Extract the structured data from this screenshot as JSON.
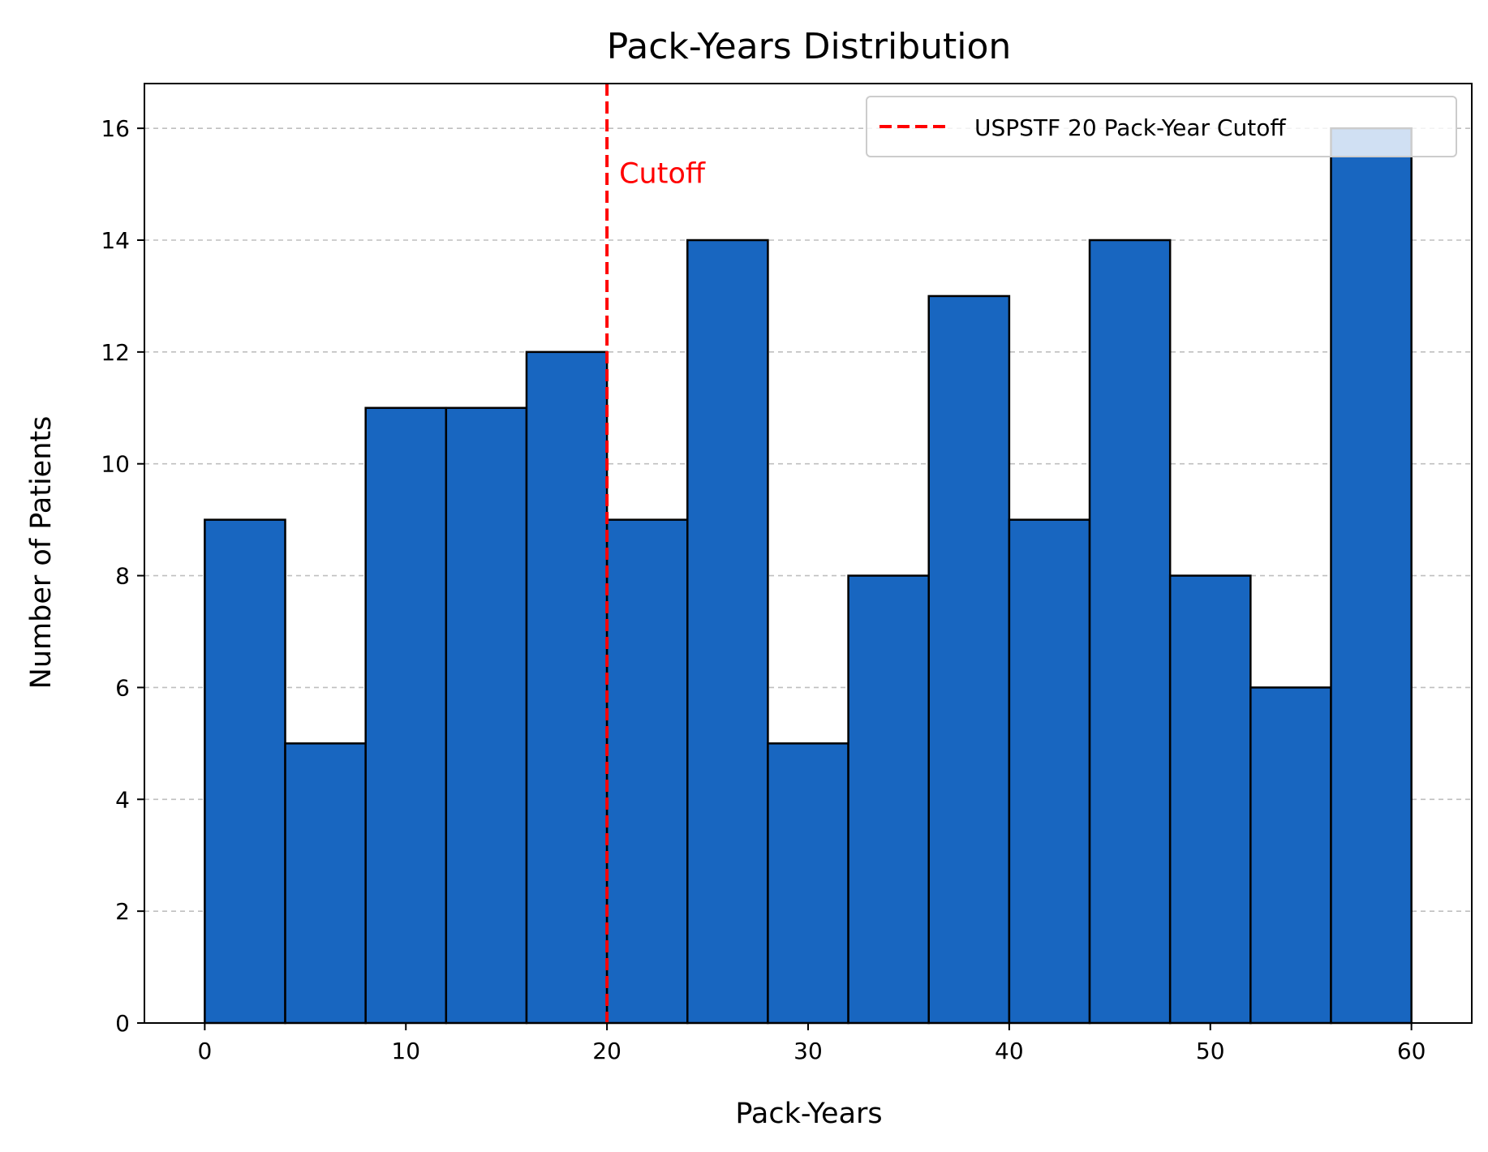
{
  "chart_data": {
    "type": "bar",
    "title": "Pack-Years Distribution",
    "xlabel": "Pack-Years",
    "ylabel": "Number of Patients",
    "xlim": [
      -3,
      63
    ],
    "ylim": [
      0,
      16.8
    ],
    "xticks": [
      0,
      10,
      20,
      30,
      40,
      50,
      60
    ],
    "yticks": [
      0,
      2,
      4,
      6,
      8,
      10,
      12,
      14,
      16
    ],
    "grid": "y-dashed",
    "legend_position": "top-right",
    "bin_edges": [
      0,
      4,
      8,
      12,
      16,
      20,
      24,
      28,
      32,
      36,
      40,
      44,
      48,
      52,
      56,
      60
    ],
    "values": [
      9,
      5,
      11,
      11,
      12,
      9,
      14,
      5,
      8,
      13,
      9,
      14,
      8,
      6,
      16
    ],
    "bar_color": "#1866c0",
    "cutoff": {
      "x": 20,
      "color": "#ff0000",
      "legend_label": "USPSTF 20 Pack-Year Cutoff",
      "annotation": "Cutoff",
      "annotation_y": 15.2
    }
  }
}
